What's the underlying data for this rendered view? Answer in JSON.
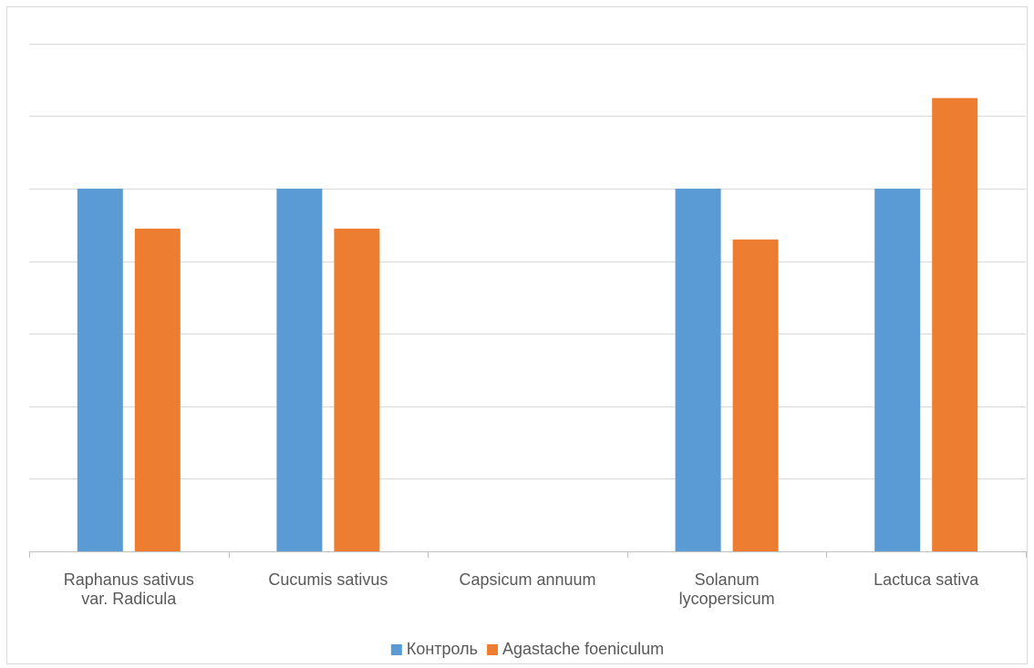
{
  "chart_data": {
    "type": "bar",
    "title": "",
    "xlabel": "",
    "ylabel": "",
    "categories": [
      [
        "Raphanus sativus",
        "var. Radicula"
      ],
      [
        "Cucumis sativus"
      ],
      [
        "Capsicum annuum"
      ],
      [
        "Solanum",
        "lycopersicum"
      ],
      [
        "Lactuca sativa"
      ]
    ],
    "series": [
      {
        "name": "Контроль",
        "color": "#5B9BD5",
        "values": [
          100,
          100,
          0,
          100,
          100
        ]
      },
      {
        "name": "Agastache foeniculum",
        "color": "#ED7D31",
        "values": [
          89,
          89,
          0,
          86,
          125
        ]
      }
    ],
    "ylim": [
      0,
      145
    ],
    "ygrid_step": 20,
    "grid": true,
    "y_tick_labels_visible": false,
    "legend_position": "bottom"
  }
}
